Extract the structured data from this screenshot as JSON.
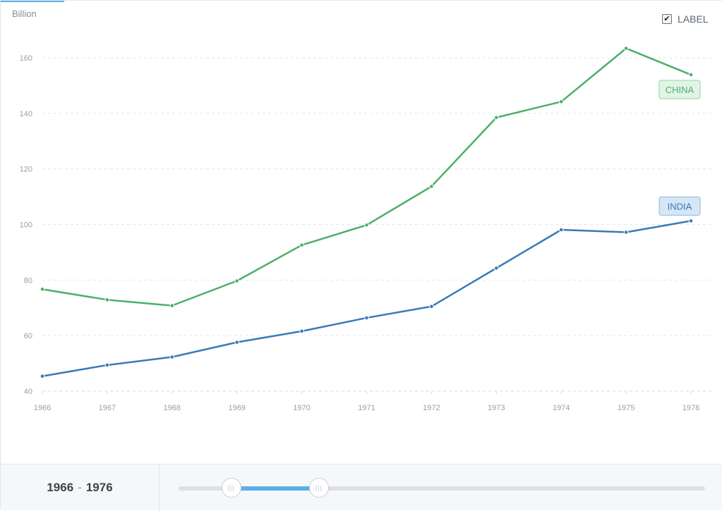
{
  "chart_data": {
    "type": "line",
    "y_unit": "Billion",
    "x": [
      "1966",
      "1967",
      "1968",
      "1969",
      "1970",
      "1971",
      "1972",
      "1973",
      "1974",
      "1975",
      "1976"
    ],
    "ylim": [
      40,
      170
    ],
    "yticks": [
      40,
      60,
      80,
      100,
      120,
      140,
      160
    ],
    "grid": true,
    "series": [
      {
        "name": "CHINA",
        "color": "#4caf6a",
        "label_bg": "#e2f4e6",
        "label_border": "#8fd4a1",
        "values": [
          76.7,
          72.9,
          70.8,
          79.7,
          92.6,
          99.8,
          113.7,
          138.5,
          144.2,
          163.4,
          153.9
        ]
      },
      {
        "name": "INDIA",
        "color": "#3a7ab8",
        "label_bg": "#d5e6f6",
        "label_border": "#8fb8de",
        "values": [
          45.4,
          49.4,
          52.3,
          57.6,
          61.6,
          66.4,
          70.5,
          84.3,
          98.1,
          97.2,
          101.3
        ]
      }
    ]
  },
  "controls": {
    "label_toggle": "LABEL",
    "label_checked": true,
    "range_start": "1966",
    "range_sep": "-",
    "range_end": "1976",
    "slider": {
      "min": 1960,
      "max": 2020,
      "start": 1966,
      "end": 1976
    }
  },
  "colors": {
    "accent": "#5aaee8",
    "grid": "#e3e6ea",
    "axis_text": "#9aa0a6"
  }
}
